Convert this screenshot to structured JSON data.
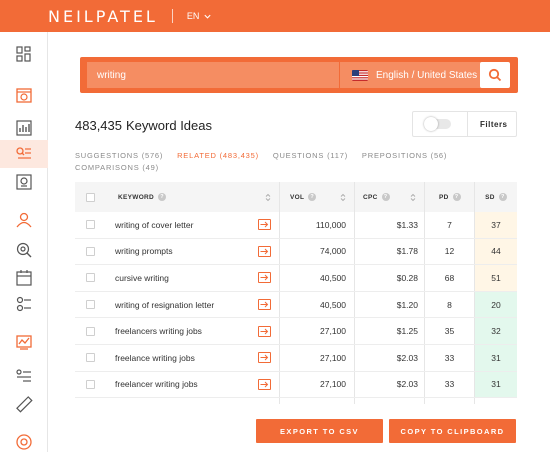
{
  "app": {
    "logo": "NEILPATEL",
    "language": "EN"
  },
  "sidebar": {
    "items": [
      {
        "icon": "dashboard-grid-icon",
        "active": false
      },
      {
        "icon": "site-audit-icon",
        "active": false
      },
      {
        "icon": "traffic-chart-icon",
        "active": false
      },
      {
        "icon": "keyword-ideas-icon",
        "active": true
      },
      {
        "icon": "content-ideas-icon",
        "active": false
      },
      {
        "icon": "users-icon",
        "active": false
      },
      {
        "icon": "backlinks-icon",
        "active": false
      },
      {
        "icon": "calendar-icon",
        "active": false
      },
      {
        "icon": "keyword-search-icon",
        "active": false
      },
      {
        "icon": "rank-tracking-icon",
        "active": false
      },
      {
        "icon": "list-view-icon",
        "active": false
      },
      {
        "icon": "ruler-icon",
        "active": false
      },
      {
        "icon": "help-lifebuoy-icon",
        "active": false
      }
    ]
  },
  "search": {
    "value": "writing",
    "location": "English / United States"
  },
  "results": {
    "count": "483,435",
    "label": "Keyword Ideas"
  },
  "filters": {
    "label": "Filters"
  },
  "tabs": [
    {
      "label": "SUGGESTIONS (576)",
      "active": false
    },
    {
      "label": "RELATED (483,435)",
      "active": true
    },
    {
      "label": "QUESTIONS (117)",
      "active": false
    },
    {
      "label": "PREPOSITIONS (56)",
      "active": false
    },
    {
      "label": "COMPARISONS (49)",
      "active": false
    }
  ],
  "table": {
    "headers": {
      "keyword": "KEYWORD",
      "vol": "VOL",
      "cpc": "CPC",
      "pd": "PD",
      "sd": "SD"
    },
    "rows": [
      {
        "keyword": "writing of cover letter",
        "vol": "110,000",
        "cpc": "$1.33",
        "pd": "7",
        "sd": "37",
        "sd_color": "#fff6e6"
      },
      {
        "keyword": "writing prompts",
        "vol": "74,000",
        "cpc": "$1.78",
        "pd": "12",
        "sd": "44",
        "sd_color": "#fff6e6"
      },
      {
        "keyword": "cursive writing",
        "vol": "40,500",
        "cpc": "$0.28",
        "pd": "68",
        "sd": "51",
        "sd_color": "#fff6e6"
      },
      {
        "keyword": "writing of resignation letter",
        "vol": "40,500",
        "cpc": "$1.20",
        "pd": "8",
        "sd": "20",
        "sd_color": "#e3f8ed"
      },
      {
        "keyword": "freelancers writing jobs",
        "vol": "27,100",
        "cpc": "$1.25",
        "pd": "35",
        "sd": "32",
        "sd_color": "#e3f8ed"
      },
      {
        "keyword": "freelance writing jobs",
        "vol": "27,100",
        "cpc": "$2.03",
        "pd": "33",
        "sd": "31",
        "sd_color": "#e3f8ed"
      },
      {
        "keyword": "freelancer writing jobs",
        "vol": "27,100",
        "cpc": "$2.03",
        "pd": "33",
        "sd": "31",
        "sd_color": "#e3f8ed"
      }
    ]
  },
  "actions": {
    "export_csv": "EXPORT TO CSV",
    "copy_clipboard": "COPY TO CLIPBOARD"
  },
  "colors": {
    "accent": "#f26b37"
  }
}
